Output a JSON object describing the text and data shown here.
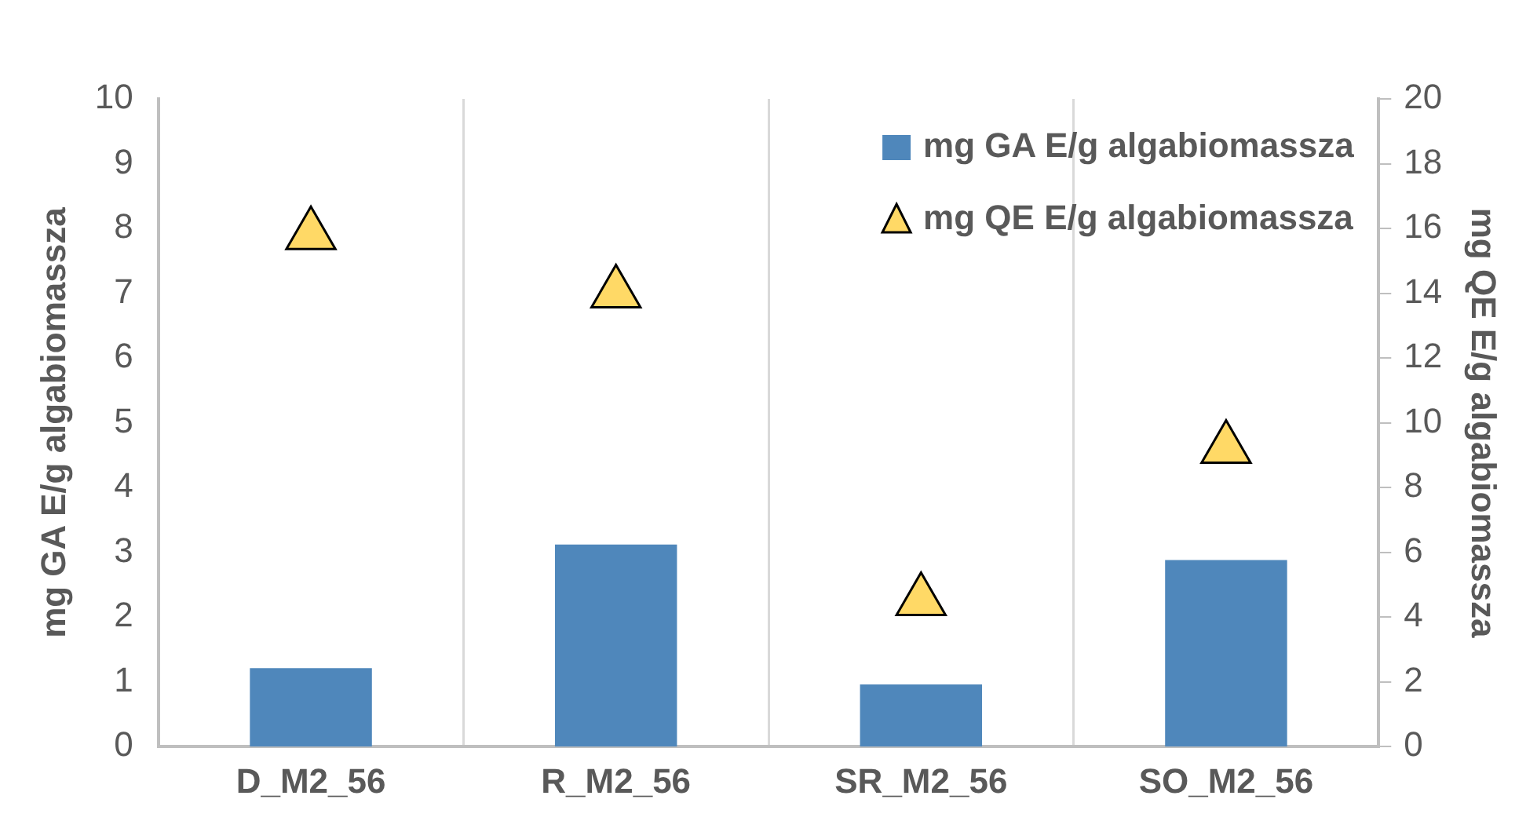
{
  "chart_data": {
    "type": "bar",
    "ylabel": "mg GA E/g algabiomassza",
    "y2label": "mg QE E/g algabiomassza",
    "categories": [
      "D_M2_56",
      "R_M2_56",
      "SR_M2_56",
      "SO_M2_56"
    ],
    "series": [
      {
        "name": "mg GA E/g algabiomassza",
        "color": "#4f87bb",
        "values": [
          1.21,
          3.12,
          0.96,
          2.88
        ]
      },
      {
        "name": "mg QE E/g algabiomassza",
        "type": "scatter",
        "axis": "y2",
        "marker": "triangle",
        "color": "#ffd966",
        "values": [
          15.8,
          14.0,
          4.5,
          9.2
        ]
      }
    ],
    "ylim": [
      0,
      10
    ],
    "yticks": [
      0,
      1,
      2,
      3,
      4,
      5,
      6,
      7,
      8,
      9,
      10
    ],
    "y2lim": [
      0,
      20
    ],
    "y2ticks": [
      0,
      2,
      4,
      6,
      8,
      10,
      12,
      14,
      16,
      18,
      20
    ],
    "grid": "x",
    "legend": "top right"
  }
}
